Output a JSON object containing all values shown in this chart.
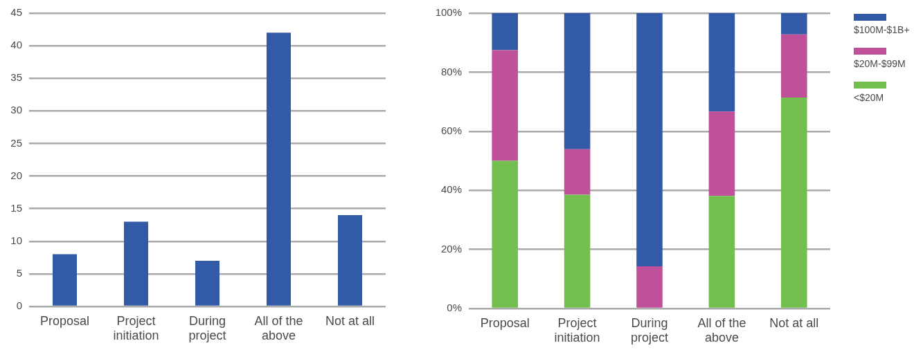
{
  "chart_data": [
    {
      "type": "bar",
      "categories": [
        "Proposal",
        "Project initiation",
        "During project",
        "All of the above",
        "Not at all"
      ],
      "values": [
        8,
        13,
        7,
        42,
        14
      ],
      "color": "#335aa6",
      "ylim": [
        0,
        45
      ],
      "yticks": [
        0,
        5,
        10,
        15,
        20,
        25,
        30,
        35,
        40,
        45
      ],
      "grid": "y"
    },
    {
      "type": "bar",
      "stacked": true,
      "categories": [
        "Proposal",
        "Project initiation",
        "During project",
        "All of the above",
        "Not at all"
      ],
      "series": [
        {
          "name": "<$20M",
          "color": "#72bf4f",
          "values": [
            50,
            38.5,
            0,
            38.1,
            71.4
          ]
        },
        {
          "name": "$20M-$99M",
          "color": "#bf519b",
          "values": [
            37.5,
            15.4,
            14.3,
            28.6,
            21.4
          ]
        },
        {
          "name": "$100M-$1B+",
          "color": "#335aa6",
          "values": [
            12.5,
            46.1,
            85.7,
            33.3,
            7.2
          ]
        }
      ],
      "ylim": [
        0,
        100
      ],
      "yticks": [
        {
          "value": 0,
          "label": "0%"
        },
        {
          "value": 20,
          "label": "20%"
        },
        {
          "value": 40,
          "label": "40%"
        },
        {
          "value": 60,
          "label": "60%"
        },
        {
          "value": 80,
          "label": "80%"
        },
        {
          "value": 100,
          "label": "100%"
        }
      ],
      "grid": "y",
      "legend": "top right"
    }
  ]
}
